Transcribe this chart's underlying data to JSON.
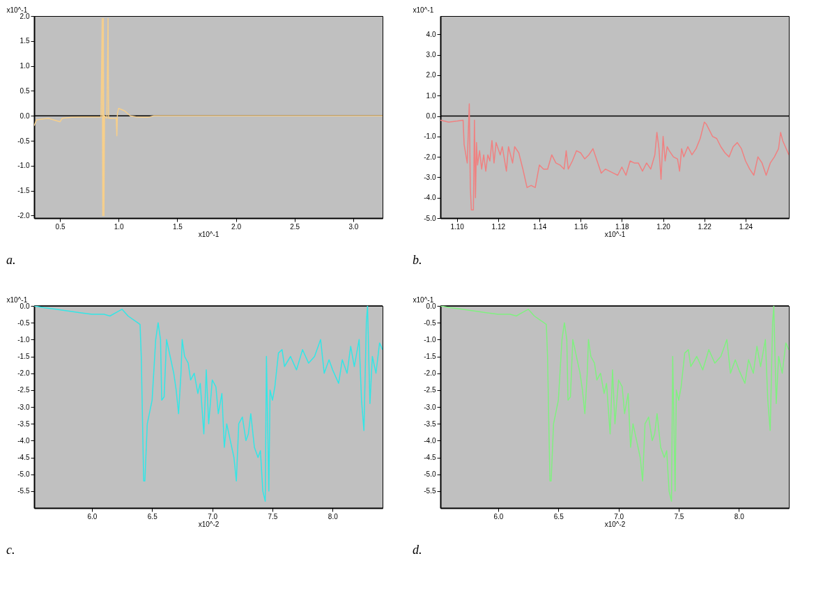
{
  "chart_data": [
    {
      "type": "line",
      "title": "a.",
      "xlabel": "x10^-1",
      "ylabel": "x10^-1",
      "xlim": [
        0.28,
        3.25
      ],
      "xticks": [
        0.5,
        {
          "value": 1,
          "label": "1.0"
        },
        1.5,
        {
          "value": 2,
          "label": "2.0"
        },
        2.5,
        {
          "value": 3,
          "label": "3.0"
        }
      ],
      "ylim": [
        -2.05,
        2.0
      ],
      "yticks": [
        {
          "value": -2,
          "label": "-2.0"
        },
        -1.5,
        {
          "value": -1,
          "label": "-1.0"
        },
        -0.5,
        {
          "value": 0,
          "label": "0.0"
        },
        0.5,
        {
          "value": 1,
          "label": "1.0"
        },
        1.5,
        {
          "value": 2,
          "label": "2.0"
        }
      ],
      "grid": false,
      "ref_lines": [
        {
          "axis": "y",
          "value": 0,
          "color": "#000000"
        }
      ],
      "series": [
        {
          "color": "#f7cf8a",
          "x": [
            0.28,
            0.3,
            0.4,
            0.5,
            0.52,
            0.6,
            0.7,
            0.8,
            0.85,
            0.86,
            0.865,
            0.87,
            0.875,
            0.88,
            0.9,
            0.91,
            0.915,
            0.95,
            0.98,
            0.985,
            0.99,
            1.0,
            1.05,
            1.1,
            1.15,
            1.2,
            1.25,
            1.3,
            1.5,
            3.0,
            3.25
          ],
          "values": [
            -0.2,
            -0.08,
            -0.05,
            -0.12,
            -0.05,
            -0.03,
            -0.02,
            -0.02,
            -0.02,
            1.95,
            -2.0,
            1.95,
            -2.0,
            0.0,
            -0.05,
            1.95,
            -0.05,
            -0.05,
            -0.05,
            -0.4,
            0.05,
            0.15,
            0.1,
            0.0,
            -0.02,
            -0.03,
            -0.03,
            0.0,
            0.0,
            0.0,
            0.0
          ]
        }
      ]
    },
    {
      "type": "line",
      "title": "b.",
      "xlabel": "x10^-1",
      "ylabel": "x10^-1",
      "xlim": [
        1.092,
        1.261
      ],
      "xticks": [
        {
          "value": 1.1,
          "label": "1.10"
        },
        1.12,
        1.14,
        1.16,
        1.18,
        {
          "value": 1.2,
          "label": "1.20"
        },
        1.22,
        1.24
      ],
      "ylim": [
        -5.0,
        4.9
      ],
      "yticks": [
        {
          "value": -5,
          "label": "-5.0"
        },
        {
          "value": -4,
          "label": "-4.0"
        },
        {
          "value": -3,
          "label": "-3.0"
        },
        {
          "value": -2,
          "label": "-2.0"
        },
        {
          "value": -1,
          "label": "-1.0"
        },
        {
          "value": 0,
          "label": "0.0"
        },
        {
          "value": 1,
          "label": "1.0"
        },
        {
          "value": 2,
          "label": "2.0"
        },
        {
          "value": 3,
          "label": "3.0"
        },
        {
          "value": 4,
          "label": "4.0"
        }
      ],
      "grid": false,
      "ref_lines": [
        {
          "axis": "y",
          "value": 0,
          "color": "#000000"
        }
      ],
      "series": [
        {
          "color": "#f08080",
          "x": [
            1.092,
            1.096,
            1.1,
            1.103,
            1.1035,
            1.105,
            1.106,
            1.1065,
            1.107,
            1.108,
            1.1085,
            1.109,
            1.1095,
            1.11,
            1.111,
            1.112,
            1.113,
            1.114,
            1.115,
            1.116,
            1.117,
            1.118,
            1.119,
            1.121,
            1.122,
            1.124,
            1.125,
            1.127,
            1.128,
            1.13,
            1.132,
            1.134,
            1.136,
            1.138,
            1.14,
            1.142,
            1.144,
            1.146,
            1.148,
            1.15,
            1.152,
            1.153,
            1.154,
            1.156,
            1.158,
            1.16,
            1.162,
            1.164,
            1.166,
            1.168,
            1.17,
            1.172,
            1.174,
            1.176,
            1.178,
            1.18,
            1.182,
            1.184,
            1.186,
            1.188,
            1.19,
            1.192,
            1.194,
            1.196,
            1.197,
            1.198,
            1.199,
            1.2,
            1.201,
            1.202,
            1.203,
            1.205,
            1.207,
            1.208,
            1.209,
            1.21,
            1.212,
            1.214,
            1.216,
            1.218,
            1.22,
            1.221,
            1.222,
            1.224,
            1.226,
            1.228,
            1.23,
            1.232,
            1.234,
            1.236,
            1.238,
            1.24,
            1.242,
            1.244,
            1.246,
            1.248,
            1.25,
            1.252,
            1.254,
            1.256,
            1.257,
            1.258,
            1.261
          ],
          "values": [
            -0.2,
            -0.3,
            -0.25,
            -0.2,
            -1.4,
            -2.3,
            0.6,
            -3.5,
            -4.6,
            -4.6,
            -0.2,
            -4.0,
            -1.3,
            -2.4,
            -1.7,
            -2.6,
            -1.9,
            -2.7,
            -1.9,
            -2.2,
            -1.2,
            -2.3,
            -1.3,
            -1.9,
            -1.5,
            -2.7,
            -1.5,
            -2.3,
            -1.5,
            -1.8,
            -2.6,
            -3.5,
            -3.4,
            -3.5,
            -2.4,
            -2.6,
            -2.6,
            -1.9,
            -2.3,
            -2.4,
            -2.6,
            -1.7,
            -2.6,
            -2.2,
            -1.7,
            -1.8,
            -2.1,
            -1.9,
            -1.6,
            -2.2,
            -2.8,
            -2.6,
            -2.7,
            -2.8,
            -2.9,
            -2.5,
            -2.9,
            -2.2,
            -2.3,
            -2.3,
            -2.7,
            -2.3,
            -2.6,
            -1.9,
            -0.8,
            -1.6,
            -3.1,
            -1.0,
            -2.2,
            -1.5,
            -1.7,
            -2.0,
            -2.1,
            -2.7,
            -1.6,
            -2.0,
            -1.5,
            -1.9,
            -1.6,
            -1.1,
            -0.3,
            -0.4,
            -0.6,
            -1.0,
            -1.1,
            -1.5,
            -1.8,
            -2.0,
            -1.5,
            -1.3,
            -1.6,
            -2.2,
            -2.6,
            -2.9,
            -2.0,
            -2.3,
            -2.9,
            -2.3,
            -2.0,
            -1.6,
            -0.8,
            -1.2,
            -1.9
          ]
        }
      ]
    },
    {
      "type": "line",
      "title": "c.",
      "xlabel": "x10^-2",
      "ylabel": "x10^-1",
      "xlim": [
        5.52,
        8.415
      ],
      "xticks": [
        {
          "value": 6,
          "label": "6.0"
        },
        6.5,
        {
          "value": 7,
          "label": "7.0"
        },
        7.5,
        {
          "value": 8,
          "label": "8.0"
        }
      ],
      "ylim": [
        -6.0,
        0.0
      ],
      "yticks": [
        -5.5,
        {
          "value": -5,
          "label": "-5.0"
        },
        -4.5,
        {
          "value": -4,
          "label": "-4.0"
        },
        -3.5,
        {
          "value": -3,
          "label": "-3.0"
        },
        -2.5,
        {
          "value": -2,
          "label": "-2.0"
        },
        -1.5,
        {
          "value": -1,
          "label": "-1.0"
        },
        -0.5,
        {
          "value": 0,
          "label": "0.0"
        }
      ],
      "grid": false,
      "ref_lines": [
        {
          "axis": "y",
          "value": 0,
          "color": "#000000"
        }
      ],
      "series": [
        {
          "color": "#33e6e6",
          "x": [
            5.52,
            5.6,
            5.7,
            5.8,
            5.9,
            6.0,
            6.1,
            6.15,
            6.2,
            6.25,
            6.3,
            6.38,
            6.4,
            6.41,
            6.43,
            6.44,
            6.46,
            6.5,
            6.53,
            6.55,
            6.57,
            6.58,
            6.6,
            6.62,
            6.65,
            6.68,
            6.7,
            6.72,
            6.74,
            6.75,
            6.77,
            6.8,
            6.82,
            6.85,
            6.88,
            6.9,
            6.93,
            6.95,
            6.97,
            7.0,
            7.03,
            7.05,
            7.08,
            7.1,
            7.12,
            7.15,
            7.18,
            7.2,
            7.22,
            7.25,
            7.28,
            7.3,
            7.32,
            7.35,
            7.38,
            7.4,
            7.42,
            7.44,
            7.45,
            7.47,
            7.48,
            7.5,
            7.52,
            7.55,
            7.58,
            7.6,
            7.65,
            7.7,
            7.75,
            7.8,
            7.85,
            7.9,
            7.93,
            7.97,
            8.0,
            8.05,
            8.08,
            8.12,
            8.15,
            8.18,
            8.22,
            8.24,
            8.26,
            8.28,
            8.29,
            8.3,
            8.31,
            8.33,
            8.36,
            8.39,
            8.415
          ],
          "values": [
            0.0,
            -0.05,
            -0.1,
            -0.15,
            -0.2,
            -0.25,
            -0.25,
            -0.3,
            -0.2,
            -0.1,
            -0.3,
            -0.5,
            -0.55,
            -1.5,
            -5.2,
            -5.2,
            -3.5,
            -2.8,
            -1.0,
            -0.5,
            -1.0,
            -2.8,
            -2.7,
            -1.0,
            -1.5,
            -2.0,
            -2.5,
            -3.2,
            -2.0,
            -1.0,
            -1.5,
            -1.7,
            -2.2,
            -2.0,
            -2.6,
            -2.3,
            -3.8,
            -1.9,
            -3.5,
            -2.2,
            -2.4,
            -3.2,
            -2.6,
            -4.2,
            -3.5,
            -4.0,
            -4.5,
            -5.2,
            -3.5,
            -3.3,
            -4.0,
            -3.8,
            -3.2,
            -4.2,
            -4.5,
            -4.3,
            -5.5,
            -5.8,
            -1.5,
            -5.5,
            -2.5,
            -2.8,
            -2.4,
            -1.4,
            -1.3,
            -1.8,
            -1.5,
            -1.9,
            -1.3,
            -1.7,
            -1.5,
            -1.0,
            -2.0,
            -1.6,
            -1.9,
            -2.3,
            -1.6,
            -2.0,
            -1.2,
            -1.8,
            -1.0,
            -2.8,
            -3.7,
            -0.5,
            0.0,
            -1.5,
            -2.9,
            -1.5,
            -2.0,
            -1.1,
            -1.3
          ]
        }
      ]
    },
    {
      "type": "line",
      "title": "d.",
      "xlabel": "x10^-2",
      "ylabel": "x10^-1",
      "xlim": [
        5.52,
        8.415
      ],
      "xticks": [
        {
          "value": 6,
          "label": "6.0"
        },
        6.5,
        {
          "value": 7,
          "label": "7.0"
        },
        7.5,
        {
          "value": 8,
          "label": "8.0"
        }
      ],
      "ylim": [
        -6.0,
        0.0
      ],
      "yticks": [
        -5.5,
        {
          "value": -5,
          "label": "-5.0"
        },
        -4.5,
        {
          "value": -4,
          "label": "-4.0"
        },
        -3.5,
        {
          "value": -3,
          "label": "-3.0"
        },
        -2.5,
        {
          "value": -2,
          "label": "-2.0"
        },
        -1.5,
        {
          "value": -1,
          "label": "-1.0"
        },
        -0.5,
        {
          "value": 0,
          "label": "0.0"
        }
      ],
      "grid": false,
      "ref_lines": [
        {
          "axis": "y",
          "value": 0,
          "color": "#000000"
        }
      ],
      "series": [
        {
          "color": "#80f080",
          "x": [
            5.52,
            5.6,
            5.7,
            5.8,
            5.9,
            6.0,
            6.1,
            6.15,
            6.2,
            6.25,
            6.3,
            6.38,
            6.4,
            6.41,
            6.43,
            6.44,
            6.46,
            6.5,
            6.53,
            6.55,
            6.57,
            6.58,
            6.6,
            6.62,
            6.65,
            6.68,
            6.7,
            6.72,
            6.74,
            6.75,
            6.77,
            6.8,
            6.82,
            6.85,
            6.88,
            6.9,
            6.93,
            6.95,
            6.97,
            7.0,
            7.03,
            7.05,
            7.08,
            7.1,
            7.12,
            7.15,
            7.18,
            7.2,
            7.22,
            7.25,
            7.28,
            7.3,
            7.32,
            7.35,
            7.38,
            7.4,
            7.42,
            7.44,
            7.45,
            7.47,
            7.48,
            7.5,
            7.52,
            7.55,
            7.58,
            7.6,
            7.65,
            7.7,
            7.75,
            7.8,
            7.85,
            7.9,
            7.93,
            7.97,
            8.0,
            8.05,
            8.08,
            8.12,
            8.15,
            8.18,
            8.22,
            8.24,
            8.26,
            8.28,
            8.29,
            8.3,
            8.31,
            8.33,
            8.36,
            8.39,
            8.415
          ],
          "values": [
            0.0,
            -0.05,
            -0.1,
            -0.15,
            -0.2,
            -0.25,
            -0.25,
            -0.3,
            -0.2,
            -0.1,
            -0.3,
            -0.5,
            -0.55,
            -1.5,
            -5.2,
            -5.2,
            -3.5,
            -2.8,
            -1.0,
            -0.5,
            -1.0,
            -2.8,
            -2.7,
            -1.0,
            -1.5,
            -2.0,
            -2.5,
            -3.2,
            -2.0,
            -1.0,
            -1.5,
            -1.7,
            -2.2,
            -2.0,
            -2.6,
            -2.3,
            -3.8,
            -1.9,
            -3.5,
            -2.2,
            -2.4,
            -3.2,
            -2.6,
            -4.2,
            -3.5,
            -4.0,
            -4.5,
            -5.2,
            -3.5,
            -3.3,
            -4.0,
            -3.8,
            -3.2,
            -4.2,
            -4.5,
            -4.3,
            -5.5,
            -5.8,
            -1.5,
            -5.5,
            -2.5,
            -2.8,
            -2.4,
            -1.4,
            -1.3,
            -1.8,
            -1.5,
            -1.9,
            -1.3,
            -1.7,
            -1.5,
            -1.0,
            -2.0,
            -1.6,
            -1.9,
            -2.3,
            -1.6,
            -2.0,
            -1.2,
            -1.8,
            -1.0,
            -2.8,
            -3.7,
            -0.5,
            0.0,
            -1.5,
            -2.9,
            -1.5,
            -2.0,
            -1.1,
            -1.3
          ]
        }
      ]
    }
  ]
}
